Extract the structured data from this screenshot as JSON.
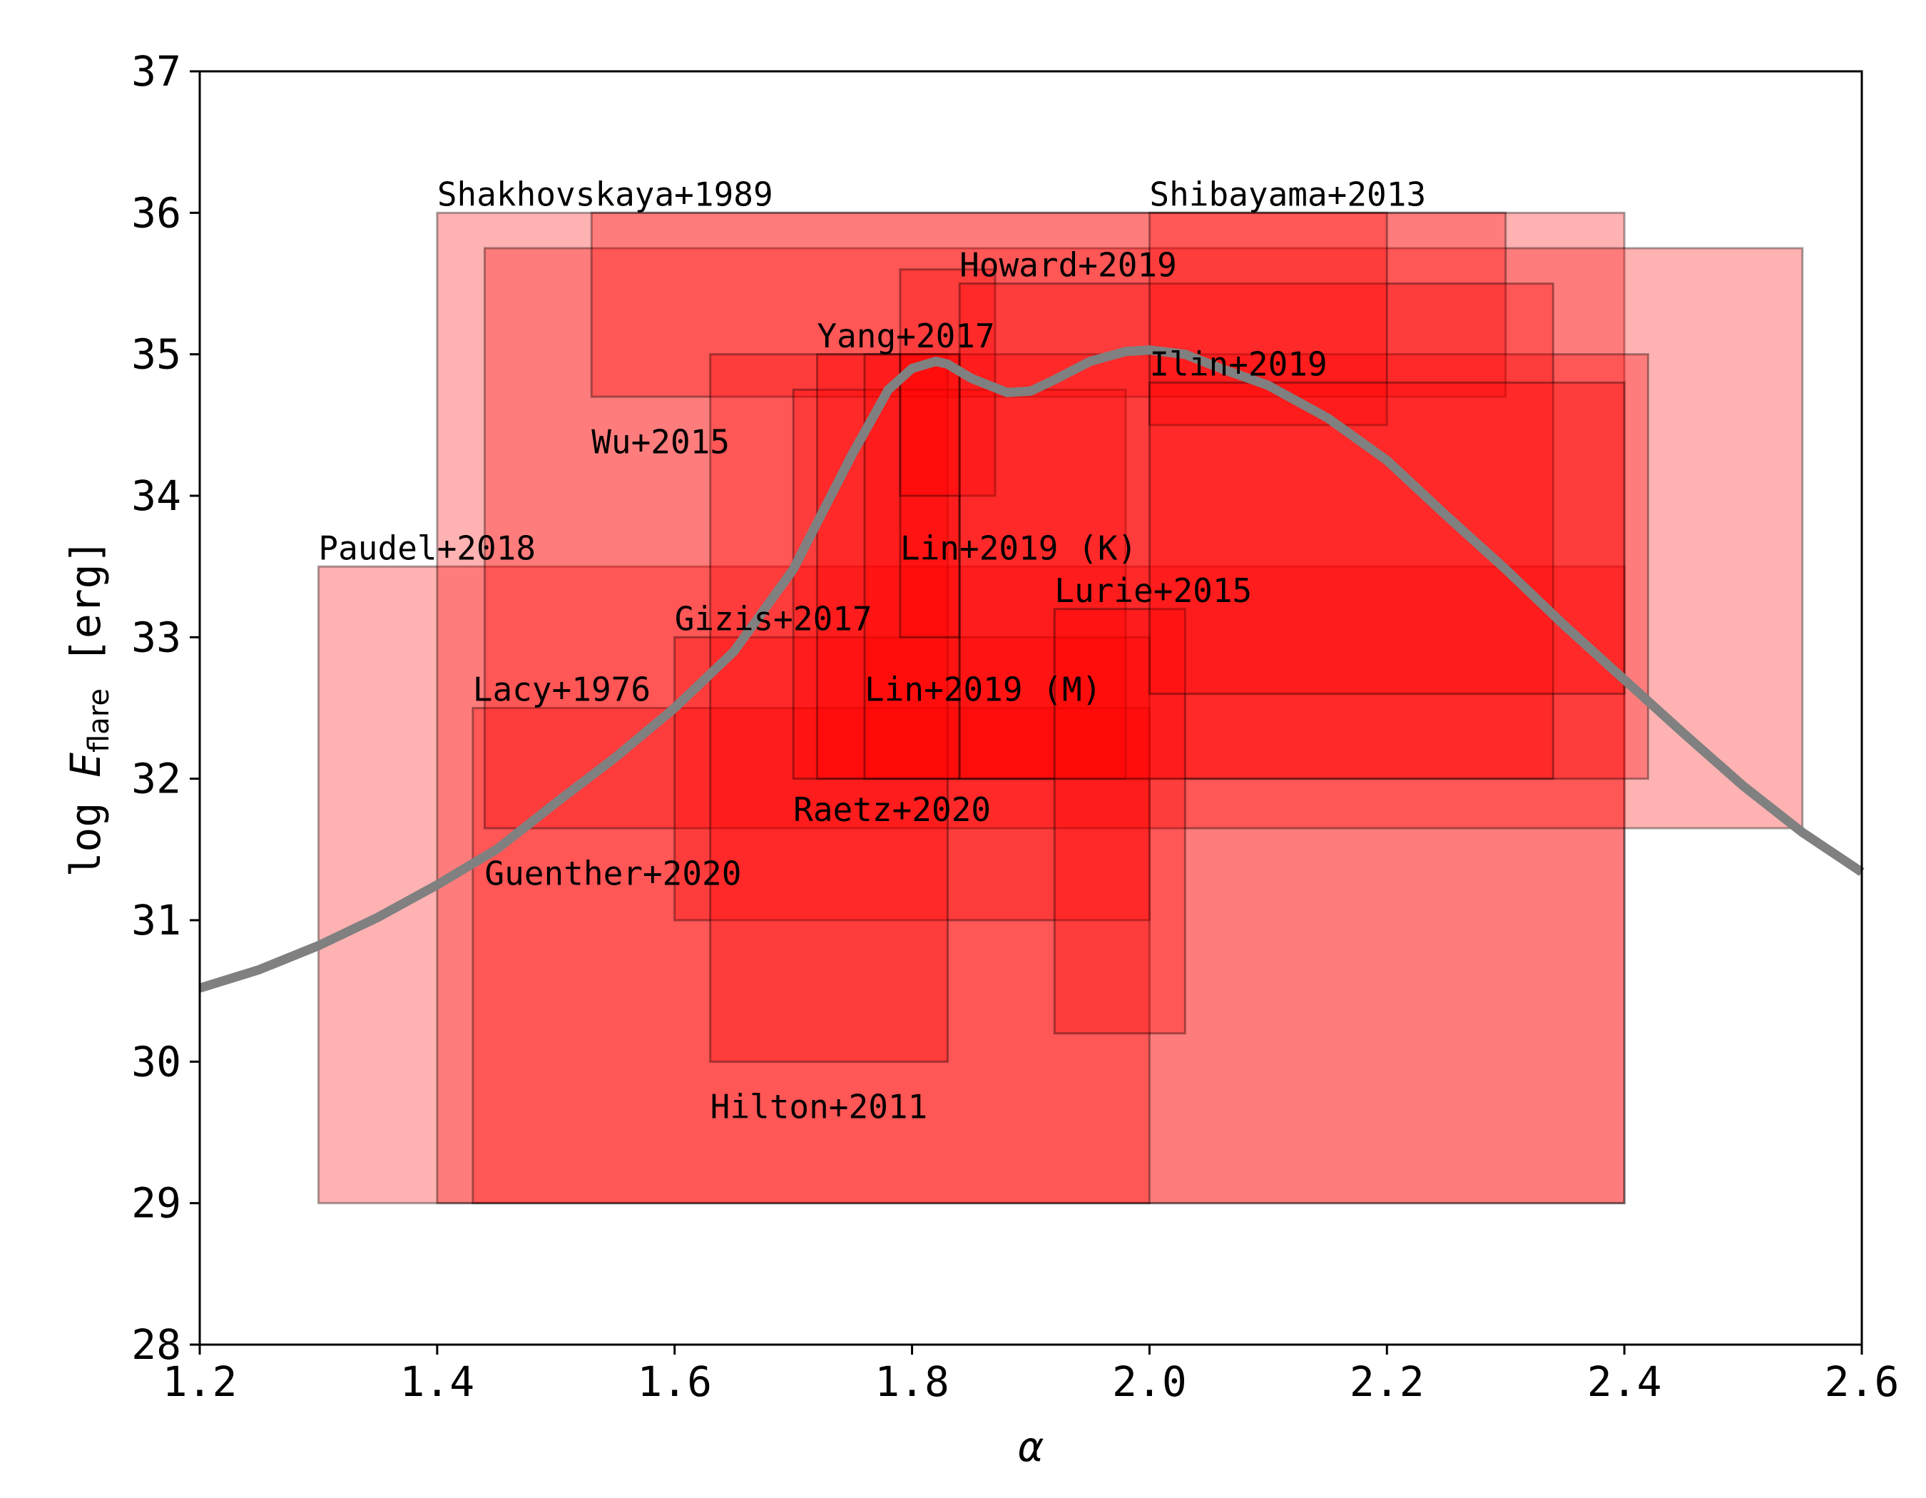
{
  "chart_data": {
    "type": "area",
    "title": "",
    "xlabel": "α",
    "ylabel": {
      "prefix": "log ",
      "symbol": "E",
      "subscript": "flare",
      "unit": " [erg]"
    },
    "xlim": [
      1.2,
      2.6
    ],
    "ylim": [
      28,
      37
    ],
    "xticks": [
      1.2,
      1.4,
      1.6,
      1.8,
      2.0,
      2.2,
      2.4,
      2.6
    ],
    "xtick_labels": [
      "1.2",
      "1.4",
      "1.6",
      "1.8",
      "2.0",
      "2.2",
      "2.4",
      "2.6"
    ],
    "yticks": [
      28,
      29,
      30,
      31,
      32,
      33,
      34,
      35,
      36,
      37
    ],
    "ytick_labels": [
      "28",
      "29",
      "30",
      "31",
      "32",
      "33",
      "34",
      "35",
      "36",
      "37"
    ],
    "grid": false,
    "box_color": "#ff0000",
    "curve_color": "#808080",
    "boxes": [
      {
        "name": "Paudel+2018",
        "alpha": [
          1.3,
          2.4
        ],
        "logE": [
          29.0,
          33.5
        ],
        "label_at": [
          1.3,
          33.55
        ]
      },
      {
        "name": "Shakhovskaya+1989",
        "alpha": [
          1.4,
          2.4
        ],
        "logE": [
          29.0,
          36.0
        ],
        "label_at": [
          1.4,
          36.05
        ]
      },
      {
        "name": "Lacy+1976",
        "alpha": [
          1.43,
          2.0
        ],
        "logE": [
          29.0,
          32.5
        ],
        "label_at": [
          1.43,
          32.55
        ]
      },
      {
        "name": "Guenther+2020",
        "alpha": [
          1.44,
          2.55
        ],
        "logE": [
          31.65,
          35.75
        ],
        "label_at": [
          1.44,
          31.25
        ]
      },
      {
        "name": "Wu+2015",
        "alpha": [
          1.53,
          2.3
        ],
        "logE": [
          34.7,
          36.0
        ],
        "label_at": [
          1.53,
          34.3
        ]
      },
      {
        "name": "Gizis+2017",
        "alpha": [
          1.6,
          2.0
        ],
        "logE": [
          31.0,
          33.0
        ],
        "label_at": [
          1.6,
          33.05
        ]
      },
      {
        "name": "Hilton+2011",
        "alpha": [
          1.63,
          1.83
        ],
        "logE": [
          30.0,
          35.0
        ],
        "label_at": [
          1.63,
          29.6
        ]
      },
      {
        "name": "Raetz+2020",
        "alpha": [
          1.7,
          1.98
        ],
        "logE": [
          32.0,
          34.75
        ],
        "label_at": [
          1.7,
          31.7
        ]
      },
      {
        "name": "Yang+2017",
        "alpha": [
          1.72,
          2.42
        ],
        "logE": [
          32.0,
          35.0
        ],
        "label_at": [
          1.72,
          35.05
        ]
      },
      {
        "name": "Lin+2019 (M)",
        "alpha": [
          1.76,
          1.84
        ],
        "logE": [
          32.0,
          35.0
        ],
        "label_at": [
          1.76,
          32.55
        ]
      },
      {
        "name": "Lin+2019 (K)",
        "alpha": [
          1.79,
          1.84
        ],
        "logE": [
          33.0,
          35.0
        ],
        "label_at": [
          1.79,
          33.55
        ]
      },
      {
        "name": "Howard+2019",
        "alpha": [
          1.79,
          1.87
        ],
        "logE": [
          34.0,
          35.6
        ],
        "label_at": [
          1.84,
          35.55
        ]
      },
      {
        "name": "Ilin+2019",
        "alpha": [
          1.84,
          2.34
        ],
        "logE": [
          32.0,
          35.5
        ],
        "label_at": [
          2.0,
          34.85
        ]
      },
      {
        "name": "Lurie+2015",
        "alpha": [
          1.92,
          2.03
        ],
        "logE": [
          30.2,
          33.2
        ],
        "label_at": [
          1.92,
          33.25
        ]
      },
      {
        "name": "Shibayama+2013",
        "alpha": [
          2.0,
          2.2
        ],
        "logE": [
          34.5,
          36.0
        ],
        "label_at": [
          2.0,
          36.05
        ]
      },
      {
        "name": "",
        "alpha": [
          2.0,
          2.4
        ],
        "logE": [
          32.6,
          34.8
        ],
        "label_at": null
      }
    ],
    "curve": {
      "x": [
        1.2,
        1.25,
        1.3,
        1.35,
        1.4,
        1.45,
        1.5,
        1.55,
        1.6,
        1.65,
        1.7,
        1.75,
        1.78,
        1.8,
        1.82,
        1.83,
        1.85,
        1.88,
        1.9,
        1.92,
        1.95,
        1.98,
        2.0,
        2.03,
        2.06,
        2.1,
        2.15,
        2.2,
        2.25,
        2.3,
        2.35,
        2.4,
        2.45,
        2.5,
        2.55,
        2.6
      ],
      "y": [
        30.52,
        30.65,
        30.82,
        31.02,
        31.25,
        31.5,
        31.83,
        32.15,
        32.5,
        32.9,
        33.48,
        34.3,
        34.75,
        34.9,
        34.95,
        34.93,
        34.83,
        34.73,
        34.74,
        34.82,
        34.95,
        35.02,
        35.03,
        35.0,
        34.9,
        34.78,
        34.55,
        34.25,
        33.86,
        33.48,
        33.08,
        32.7,
        32.32,
        31.95,
        31.62,
        31.34
      ]
    }
  }
}
